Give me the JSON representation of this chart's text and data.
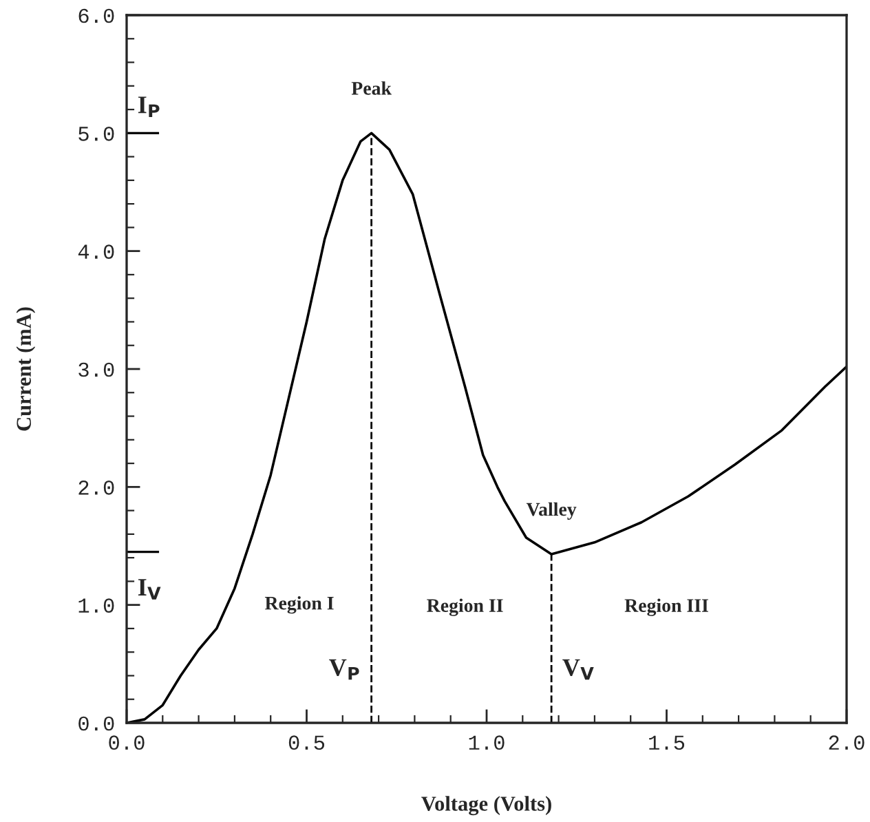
{
  "chart_data": {
    "type": "line",
    "xlabel": "Voltage (Volts)",
    "ylabel": "Current (mA)",
    "x": [
      0,
      0.05,
      0.1,
      0.15,
      0.2,
      0.25,
      0.3,
      0.35,
      0.4,
      0.45,
      0.5,
      0.55,
      0.6,
      0.65,
      0.68,
      0.73,
      0.795,
      0.87,
      0.94,
      0.99,
      1.03,
      1.05,
      1.11,
      1.18,
      1.3,
      1.43,
      1.56,
      1.69,
      1.82,
      1.94,
      2.0
    ],
    "series": [
      {
        "color": "#000000",
        "values": [
          0,
          0.03,
          0.15,
          0.4,
          0.62,
          0.8,
          1.14,
          1.6,
          2.1,
          2.75,
          3.4,
          4.1,
          4.6,
          4.93,
          5.0,
          4.86,
          4.48,
          3.63,
          2.85,
          2.27,
          2.0,
          1.88,
          1.57,
          1.43,
          1.53,
          1.7,
          1.92,
          2.19,
          2.48,
          2.85,
          3.02
        ]
      }
    ],
    "xlim": [
      0,
      2.0
    ],
    "ylim": [
      0,
      6.0
    ],
    "xticks": [
      {
        "value": 0,
        "label": "0.0"
      },
      {
        "value": 0.1,
        "label": null
      },
      {
        "value": 0.2,
        "label": null
      },
      {
        "value": 0.3,
        "label": null
      },
      {
        "value": 0.4,
        "label": null
      },
      0.5,
      {
        "value": 0.6,
        "label": null
      },
      {
        "value": 0.7,
        "label": null
      },
      {
        "value": 0.8,
        "label": null
      },
      {
        "value": 0.9,
        "label": null
      },
      {
        "value": 1,
        "label": "1.0"
      },
      {
        "value": 1.1,
        "label": null
      },
      {
        "value": 1.2,
        "label": null
      },
      {
        "value": 1.3,
        "label": null
      },
      {
        "value": 1.4,
        "label": null
      },
      1.5,
      {
        "value": 1.6,
        "label": null
      },
      {
        "value": 1.7,
        "label": null
      },
      {
        "value": 1.8,
        "label": null
      },
      {
        "value": 1.9,
        "label": null
      },
      {
        "value": 2,
        "label": "2.0"
      }
    ],
    "yticks": [
      {
        "value": 0,
        "label": "0.0"
      },
      {
        "value": 0.2,
        "label": null
      },
      {
        "value": 0.4,
        "label": null
      },
      {
        "value": 0.6,
        "label": null
      },
      {
        "value": 0.8,
        "label": null
      },
      {
        "value": 1,
        "label": "1.0"
      },
      {
        "value": 1.2,
        "label": null
      },
      {
        "value": 1.4,
        "label": null
      },
      {
        "value": 1.6,
        "label": null
      },
      {
        "value": 1.8,
        "label": null
      },
      {
        "value": 2,
        "label": "2.0"
      },
      {
        "value": 2.2,
        "label": null
      },
      {
        "value": 2.4,
        "label": null
      },
      {
        "value": 2.6,
        "label": null
      },
      {
        "value": 2.8,
        "label": null
      },
      {
        "value": 3,
        "label": "3.0"
      },
      {
        "value": 3.2,
        "label": null
      },
      {
        "value": 3.4,
        "label": null
      },
      {
        "value": 3.6,
        "label": null
      },
      {
        "value": 3.8,
        "label": null
      },
      {
        "value": 4,
        "label": "4.0"
      },
      {
        "value": 4.2,
        "label": null
      },
      {
        "value": 4.4,
        "label": null
      },
      {
        "value": 4.6,
        "label": null
      },
      {
        "value": 4.8,
        "label": null
      },
      {
        "value": 5,
        "label": "5.0"
      },
      {
        "value": 5.2,
        "label": null
      },
      {
        "value": 5.4,
        "label": null
      },
      {
        "value": 5.6,
        "label": null
      },
      {
        "value": 5.8,
        "label": null
      },
      {
        "value": 6,
        "label": "6.0"
      }
    ],
    "ref_lines": [
      {
        "axis": "x",
        "value": 0.68,
        "label": "V$_{P}$",
        "line_style": "dashed"
      },
      {
        "axis": "x",
        "value": 1.18,
        "label": "V$_{V}$",
        "line_style": "dashed"
      },
      {
        "axis": "y",
        "value": 5.0,
        "label": "I$_{P}$",
        "line_style": "solid"
      },
      {
        "axis": "y",
        "value": 1.45,
        "label": "I$_{V}$",
        "line_style": "solid"
      }
    ],
    "annotations": [
      {
        "text": "Peak",
        "x": 0.68,
        "y": 5.0
      },
      {
        "text": "Valley",
        "x": 1.18,
        "y": 1.43
      },
      "Region I",
      "Region II",
      "Region III"
    ],
    "grid": false,
    "legend": false,
    "line_style": "solid",
    "marker": "none"
  }
}
